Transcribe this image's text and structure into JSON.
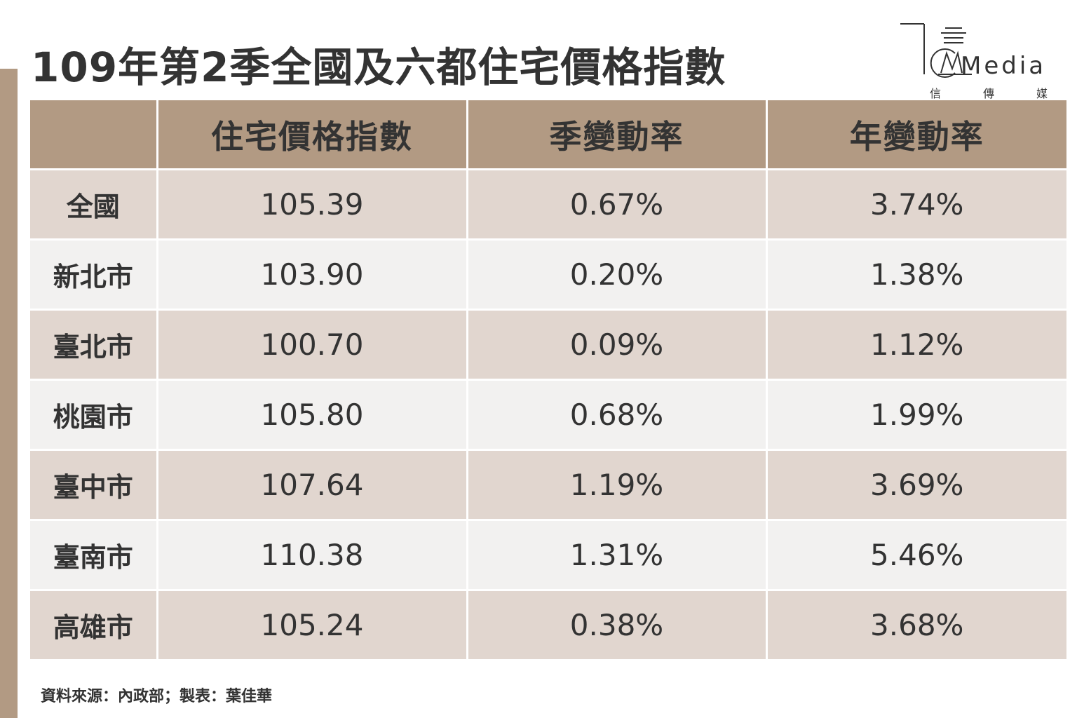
{
  "title": "109年第2季全國及六都住宅價格指數",
  "logo": {
    "text": "Media",
    "sub": [
      "信",
      "傳",
      "媒"
    ]
  },
  "table": {
    "headers": [
      "",
      "住宅價格指數",
      "季變動率",
      "年變動率"
    ],
    "rows": [
      {
        "region": "全國",
        "index": "105.39",
        "qoq": "0.67%",
        "yoy": "3.74%"
      },
      {
        "region": "新北市",
        "index": "103.90",
        "qoq": "0.20%",
        "yoy": "1.38%"
      },
      {
        "region": "臺北市",
        "index": "100.70",
        "qoq": "0.09%",
        "yoy": "1.12%"
      },
      {
        "region": "桃園市",
        "index": "105.80",
        "qoq": "0.68%",
        "yoy": "1.99%"
      },
      {
        "region": "臺中市",
        "index": "107.64",
        "qoq": "1.19%",
        "yoy": "3.69%"
      },
      {
        "region": "臺南市",
        "index": "110.38",
        "qoq": "1.31%",
        "yoy": "5.46%"
      },
      {
        "region": "高雄市",
        "index": "105.24",
        "qoq": "0.38%",
        "yoy": "3.68%"
      }
    ]
  },
  "source": "資料來源：內政部；製表：葉佳華",
  "colors": {
    "accent": "#b29a83",
    "row_dark": "#e1d6cf",
    "row_light": "#f2f1f0",
    "text": "#333333"
  }
}
